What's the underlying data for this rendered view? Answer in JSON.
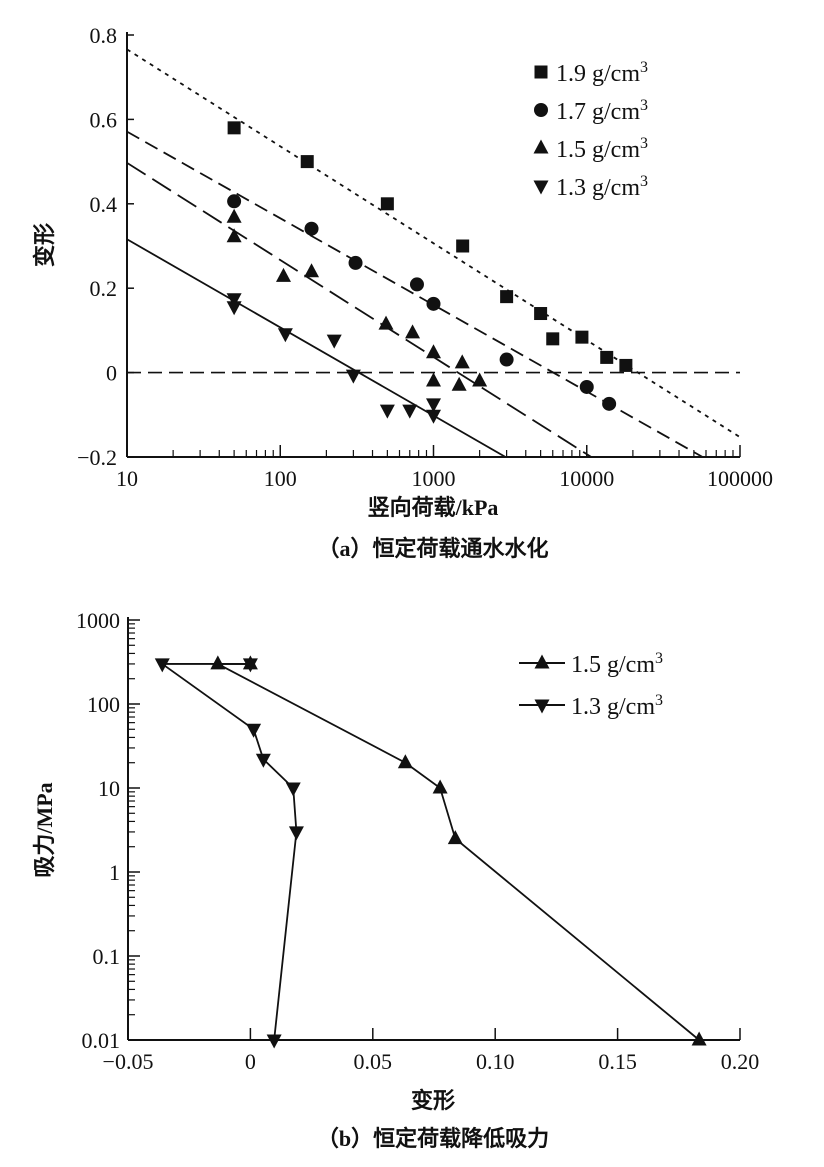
{
  "chart_data": [
    {
      "type": "scatter",
      "caption": "（a）恒定荷载通水水化",
      "xlabel": "竖向荷载/kPa",
      "ylabel": "变形",
      "xscale": "log",
      "xlim": [
        10,
        100000
      ],
      "ylim": [
        -0.2,
        0.8
      ],
      "xticks": [
        "10",
        "100",
        "1000",
        "10000",
        "100000"
      ],
      "yticks": [
        "0.8",
        "0.6",
        "0.4",
        "0.2",
        "0",
        "−0.2"
      ],
      "legend_position": "top-right",
      "reference_line": {
        "y": 0,
        "style": "dashed"
      },
      "series": [
        {
          "name": "1.9 g/cm",
          "sup": "3",
          "marker": "square",
          "fit_style": "dotted",
          "x": [
            50,
            150,
            500,
            1550,
            3000,
            5000,
            6000,
            9300,
            13500,
            18000
          ],
          "y": [
            0.58,
            0.5,
            0.4,
            0.3,
            0.18,
            0.14,
            0.08,
            0.084,
            0.036,
            0.017
          ],
          "fit": [
            [
              10,
              0.766
            ],
            [
              100000,
              -0.153
            ]
          ]
        },
        {
          "name": "1.7 g/cm",
          "sup": "3",
          "marker": "circle",
          "fit_style": "dashed",
          "x": [
            50,
            160,
            310,
            780,
            1000,
            3000,
            10000,
            14000
          ],
          "y": [
            0.406,
            0.341,
            0.26,
            0.209,
            0.163,
            0.031,
            -0.034,
            -0.074
          ],
          "fit": [
            [
              10,
              0.571
            ],
            [
              57000,
              -0.2
            ]
          ]
        },
        {
          "name": "1.5 g/cm",
          "sup": "3",
          "marker": "triangle-up",
          "fit_style": "long-dashed",
          "x": [
            50,
            50,
            105,
            160,
            490,
            730,
            1000,
            1540,
            1000,
            1470,
            2000
          ],
          "y": [
            0.368,
            0.322,
            0.228,
            0.239,
            0.115,
            0.094,
            0.047,
            0.023,
            -0.02,
            -0.03,
            -0.02
          ],
          "fit": [
            [
              10,
              0.497
            ],
            [
              10700,
              -0.2
            ]
          ]
        },
        {
          "name": "1.3 g/cm",
          "sup": "3",
          "marker": "triangle-down",
          "fit_style": "solid",
          "x": [
            50,
            50,
            108,
            225,
            300,
            500,
            700,
            1000,
            1000
          ],
          "y": [
            0.175,
            0.156,
            0.092,
            0.077,
            -0.006,
            -0.089,
            -0.089,
            -0.074,
            -0.101
          ],
          "fit": [
            [
              10,
              0.316
            ],
            [
              2950,
              -0.2
            ]
          ]
        }
      ]
    },
    {
      "type": "line",
      "caption": "（b）恒定荷载降低吸力",
      "xlabel": "变形",
      "ylabel": "吸力/MPa",
      "yscale": "log",
      "xlim": [
        -0.05,
        0.2
      ],
      "ylim": [
        0.01,
        1000
      ],
      "xticks": [
        "−0.05",
        "0",
        "0.05",
        "0.10",
        "0.15",
        "0.20"
      ],
      "yticks": [
        "1000",
        "100",
        "10",
        "1",
        "0.1",
        "0.01"
      ],
      "legend_position": "top-right",
      "series": [
        {
          "name": "1.5 g/cm",
          "sup": "3",
          "marker": "triangle-up",
          "x": [
            0,
            -0.0133,
            0.0633,
            0.0775,
            0.0837,
            0.1833
          ],
          "y": [
            300,
            300,
            20,
            10,
            2.5,
            0.01
          ]
        },
        {
          "name": "1.3 g/cm",
          "sup": "3",
          "marker": "triangle-down",
          "x": [
            0,
            -0.036,
            0.0013,
            0.0053,
            0.0175,
            0.0188,
            0.0097
          ],
          "y": [
            300,
            300,
            50,
            22,
            10,
            3,
            0.01
          ]
        }
      ]
    }
  ]
}
